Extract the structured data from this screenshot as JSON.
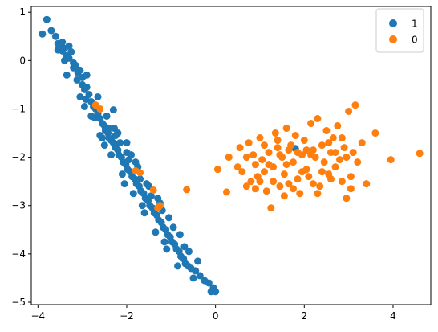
{
  "chart_data": {
    "type": "scatter",
    "title": "",
    "xlabel": "",
    "ylabel": "",
    "xlim": [
      -4.15,
      4.85
    ],
    "ylim": [
      -5.05,
      1.12
    ],
    "grid": false,
    "legend_position": "top-right",
    "x_ticks": [
      {
        "value": -4,
        "label": "−4"
      },
      {
        "value": -2,
        "label": "−2"
      },
      {
        "value": 0,
        "label": "0"
      },
      {
        "value": 2,
        "label": "2"
      },
      {
        "value": 4,
        "label": "4"
      }
    ],
    "y_ticks": [
      {
        "value": 1,
        "label": "1"
      },
      {
        "value": 0,
        "label": "0"
      },
      {
        "value": -1,
        "label": "−1"
      },
      {
        "value": -2,
        "label": "−2"
      },
      {
        "value": -3,
        "label": "−3"
      },
      {
        "value": -4,
        "label": "−4"
      },
      {
        "value": -5,
        "label": "−5"
      }
    ],
    "series": [
      {
        "name": "1",
        "color": "#1f77b4",
        "points": [
          [
            -3.8,
            0.85
          ],
          [
            -3.9,
            0.55
          ],
          [
            -3.7,
            0.62
          ],
          [
            -3.6,
            0.5
          ],
          [
            -3.55,
            0.35
          ],
          [
            -3.5,
            0.3
          ],
          [
            -3.45,
            0.2
          ],
          [
            -3.4,
            0.25
          ],
          [
            -3.35,
            0.1
          ],
          [
            -3.3,
            0.05
          ],
          [
            -3.55,
            0.22
          ],
          [
            -3.45,
            0.38
          ],
          [
            -3.3,
            0.3
          ],
          [
            -3.25,
            0.18
          ],
          [
            -3.2,
            -0.05
          ],
          [
            -3.15,
            -0.1
          ],
          [
            -3.1,
            -0.25
          ],
          [
            -3.05,
            -0.2
          ],
          [
            -3.0,
            -0.35
          ],
          [
            -3.12,
            -0.4
          ],
          [
            -3.0,
            -0.5
          ],
          [
            -2.95,
            -0.6
          ],
          [
            -2.9,
            -0.55
          ],
          [
            -2.85,
            -0.7
          ],
          [
            -2.92,
            -0.8
          ],
          [
            -2.8,
            -0.85
          ],
          [
            -2.75,
            -0.95
          ],
          [
            -2.7,
            -1.0
          ],
          [
            -2.65,
            -1.1
          ],
          [
            -2.72,
            -1.18
          ],
          [
            -2.6,
            -1.2
          ],
          [
            -2.55,
            -1.3
          ],
          [
            -2.5,
            -1.35
          ],
          [
            -2.48,
            -1.45
          ],
          [
            -2.42,
            -1.5
          ],
          [
            -2.4,
            -1.6
          ],
          [
            -2.35,
            -1.65
          ],
          [
            -2.3,
            -1.7
          ],
          [
            -2.25,
            -1.8
          ],
          [
            -2.2,
            -1.85
          ],
          [
            -2.18,
            -1.95
          ],
          [
            -2.12,
            -2.0
          ],
          [
            -2.08,
            -2.1
          ],
          [
            -2.02,
            -2.15
          ],
          [
            -1.98,
            -2.25
          ],
          [
            -1.92,
            -2.3
          ],
          [
            -1.88,
            -2.4
          ],
          [
            -1.82,
            -2.45
          ],
          [
            -1.78,
            -2.55
          ],
          [
            -1.72,
            -2.6
          ],
          [
            -1.68,
            -2.7
          ],
          [
            -1.62,
            -2.75
          ],
          [
            -1.58,
            -2.85
          ],
          [
            -1.52,
            -2.9
          ],
          [
            -1.48,
            -3.0
          ],
          [
            -1.42,
            -3.05
          ],
          [
            -1.38,
            -3.15
          ],
          [
            -1.32,
            -3.2
          ],
          [
            -1.28,
            -3.3
          ],
          [
            -1.22,
            -3.35
          ],
          [
            -1.18,
            -3.45
          ],
          [
            -1.12,
            -3.5
          ],
          [
            -1.08,
            -3.6
          ],
          [
            -1.02,
            -3.65
          ],
          [
            -0.98,
            -3.75
          ],
          [
            -0.92,
            -3.8
          ],
          [
            -0.88,
            -3.9
          ],
          [
            -0.82,
            -3.95
          ],
          [
            -0.78,
            -4.05
          ],
          [
            -0.72,
            -4.1
          ],
          [
            -0.68,
            -4.2
          ],
          [
            -0.62,
            -4.25
          ],
          [
            -0.55,
            -4.3
          ],
          [
            -0.45,
            -4.35
          ],
          [
            -0.35,
            -4.45
          ],
          [
            -0.25,
            -4.55
          ],
          [
            -0.15,
            -4.6
          ],
          [
            -0.05,
            -4.7
          ],
          [
            0.0,
            -4.78
          ],
          [
            -0.1,
            -4.78
          ],
          [
            -2.3,
            -1.02
          ],
          [
            -3.4,
            0.0
          ],
          [
            -3.2,
            -0.15
          ],
          [
            -2.9,
            -0.3
          ],
          [
            -2.65,
            -0.75
          ],
          [
            -2.45,
            -1.15
          ],
          [
            -2.2,
            -1.5
          ],
          [
            -2.0,
            -1.9
          ],
          [
            -1.75,
            -2.2
          ],
          [
            -1.55,
            -2.55
          ],
          [
            -1.3,
            -2.85
          ],
          [
            -1.05,
            -3.25
          ],
          [
            -0.8,
            -3.6
          ],
          [
            -0.6,
            -3.95
          ],
          [
            -0.4,
            -4.15
          ],
          [
            -2.6,
            -1.55
          ],
          [
            -2.35,
            -1.95
          ],
          [
            -2.1,
            -2.35
          ],
          [
            -1.85,
            -2.75
          ],
          [
            -1.6,
            -3.15
          ],
          [
            -1.35,
            -3.55
          ],
          [
            -1.1,
            -3.9
          ],
          [
            -0.85,
            -4.25
          ],
          [
            -3.05,
            -0.75
          ],
          [
            -2.8,
            -1.15
          ],
          [
            -2.55,
            -1.6
          ],
          [
            -2.28,
            -1.4
          ],
          [
            -2.15,
            -1.7
          ],
          [
            -1.95,
            -2.05
          ],
          [
            -1.7,
            -2.45
          ],
          [
            -1.45,
            -2.8
          ],
          [
            -1.2,
            -3.1
          ],
          [
            -0.95,
            -3.45
          ],
          [
            -0.7,
            -3.85
          ],
          [
            -3.35,
            -0.3
          ],
          [
            -2.95,
            -0.95
          ],
          [
            -2.5,
            -1.75
          ],
          [
            -2.05,
            -2.55
          ],
          [
            -1.65,
            -3.0
          ],
          [
            -1.15,
            -3.75
          ],
          [
            -0.5,
            -4.5
          ],
          [
            -2.0,
            -1.7
          ],
          [
            -1.8,
            -2.1
          ],
          [
            -1.5,
            -2.6
          ],
          [
            -1.25,
            -2.95
          ],
          [
            -2.4,
            -1.4
          ],
          [
            -2.25,
            -1.55
          ],
          [
            -1.9,
            -1.95
          ],
          [
            1.8,
            -1.82
          ]
        ]
      },
      {
        "name": "0",
        "color": "#ff7f0e",
        "points": [
          [
            -2.7,
            -0.92
          ],
          [
            -2.6,
            -1.0
          ],
          [
            -1.8,
            -2.28
          ],
          [
            -1.7,
            -2.32
          ],
          [
            -1.4,
            -2.68
          ],
          [
            -1.25,
            -3.0
          ],
          [
            -1.3,
            -3.05
          ],
          [
            -0.65,
            -2.67
          ],
          [
            0.05,
            -2.25
          ],
          [
            0.25,
            -2.72
          ],
          [
            0.3,
            -2.0
          ],
          [
            0.5,
            -2.2
          ],
          [
            0.55,
            -1.8
          ],
          [
            0.6,
            -2.3
          ],
          [
            0.7,
            -2.6
          ],
          [
            0.75,
            -1.7
          ],
          [
            0.8,
            -2.5
          ],
          [
            0.85,
            -1.95
          ],
          [
            0.9,
            -2.15
          ],
          [
            0.95,
            -2.4
          ],
          [
            1.0,
            -1.6
          ],
          [
            1.05,
            -2.05
          ],
          [
            1.1,
            -2.3
          ],
          [
            1.15,
            -2.7
          ],
          [
            1.2,
            -1.9
          ],
          [
            1.25,
            -3.05
          ],
          [
            1.3,
            -2.2
          ],
          [
            1.35,
            -1.5
          ],
          [
            1.4,
            -1.8
          ],
          [
            1.45,
            -2.6
          ],
          [
            1.5,
            -2.0
          ],
          [
            1.55,
            -2.35
          ],
          [
            1.6,
            -1.4
          ],
          [
            1.65,
            -2.55
          ],
          [
            1.7,
            -1.75
          ],
          [
            1.75,
            -2.1
          ],
          [
            1.8,
            -1.55
          ],
          [
            1.85,
            -2.45
          ],
          [
            1.9,
            -2.75
          ],
          [
            1.95,
            -1.95
          ],
          [
            2.0,
            -1.65
          ],
          [
            2.05,
            -2.25
          ],
          [
            2.1,
            -2.4
          ],
          [
            2.15,
            -1.3
          ],
          [
            2.2,
            -1.85
          ],
          [
            2.25,
            -2.0
          ],
          [
            2.3,
            -1.2
          ],
          [
            2.35,
            -2.6
          ],
          [
            2.4,
            -1.75
          ],
          [
            2.45,
            -2.1
          ],
          [
            2.5,
            -1.45
          ],
          [
            2.55,
            -2.35
          ],
          [
            2.6,
            -1.9
          ],
          [
            2.65,
            -1.6
          ],
          [
            2.7,
            -2.2
          ],
          [
            2.75,
            -1.35
          ],
          [
            2.8,
            -2.05
          ],
          [
            2.85,
            -2.5
          ],
          [
            2.9,
            -1.8
          ],
          [
            2.95,
            -2.85
          ],
          [
            3.0,
            -1.05
          ],
          [
            3.05,
            -2.65
          ],
          [
            3.15,
            -0.92
          ],
          [
            3.2,
            -2.1
          ],
          [
            3.3,
            -1.7
          ],
          [
            3.4,
            -2.55
          ],
          [
            3.6,
            -1.5
          ],
          [
            3.95,
            -2.05
          ],
          [
            4.6,
            -1.92
          ],
          [
            1.1,
            -1.75
          ],
          [
            1.3,
            -2.5
          ],
          [
            1.45,
            -1.95
          ],
          [
            1.6,
            -2.15
          ],
          [
            1.75,
            -2.65
          ],
          [
            2.05,
            -1.85
          ],
          [
            2.2,
            -2.55
          ],
          [
            2.4,
            -2.3
          ],
          [
            2.6,
            -2.45
          ],
          [
            2.95,
            -2.0
          ],
          [
            3.1,
            -1.9
          ],
          [
            0.7,
            -2.0
          ],
          [
            0.9,
            -2.65
          ],
          [
            1.2,
            -2.15
          ],
          [
            1.4,
            -1.65
          ],
          [
            1.85,
            -1.9
          ],
          [
            2.15,
            -1.95
          ],
          [
            2.55,
            -1.7
          ],
          [
            2.85,
            -1.6
          ],
          [
            1.55,
            -2.8
          ],
          [
            1.0,
            -2.5
          ],
          [
            2.3,
            -2.75
          ],
          [
            1.65,
            -1.85
          ],
          [
            1.95,
            -2.3
          ],
          [
            2.7,
            -1.9
          ],
          [
            3.05,
            -2.4
          ]
        ]
      }
    ]
  }
}
